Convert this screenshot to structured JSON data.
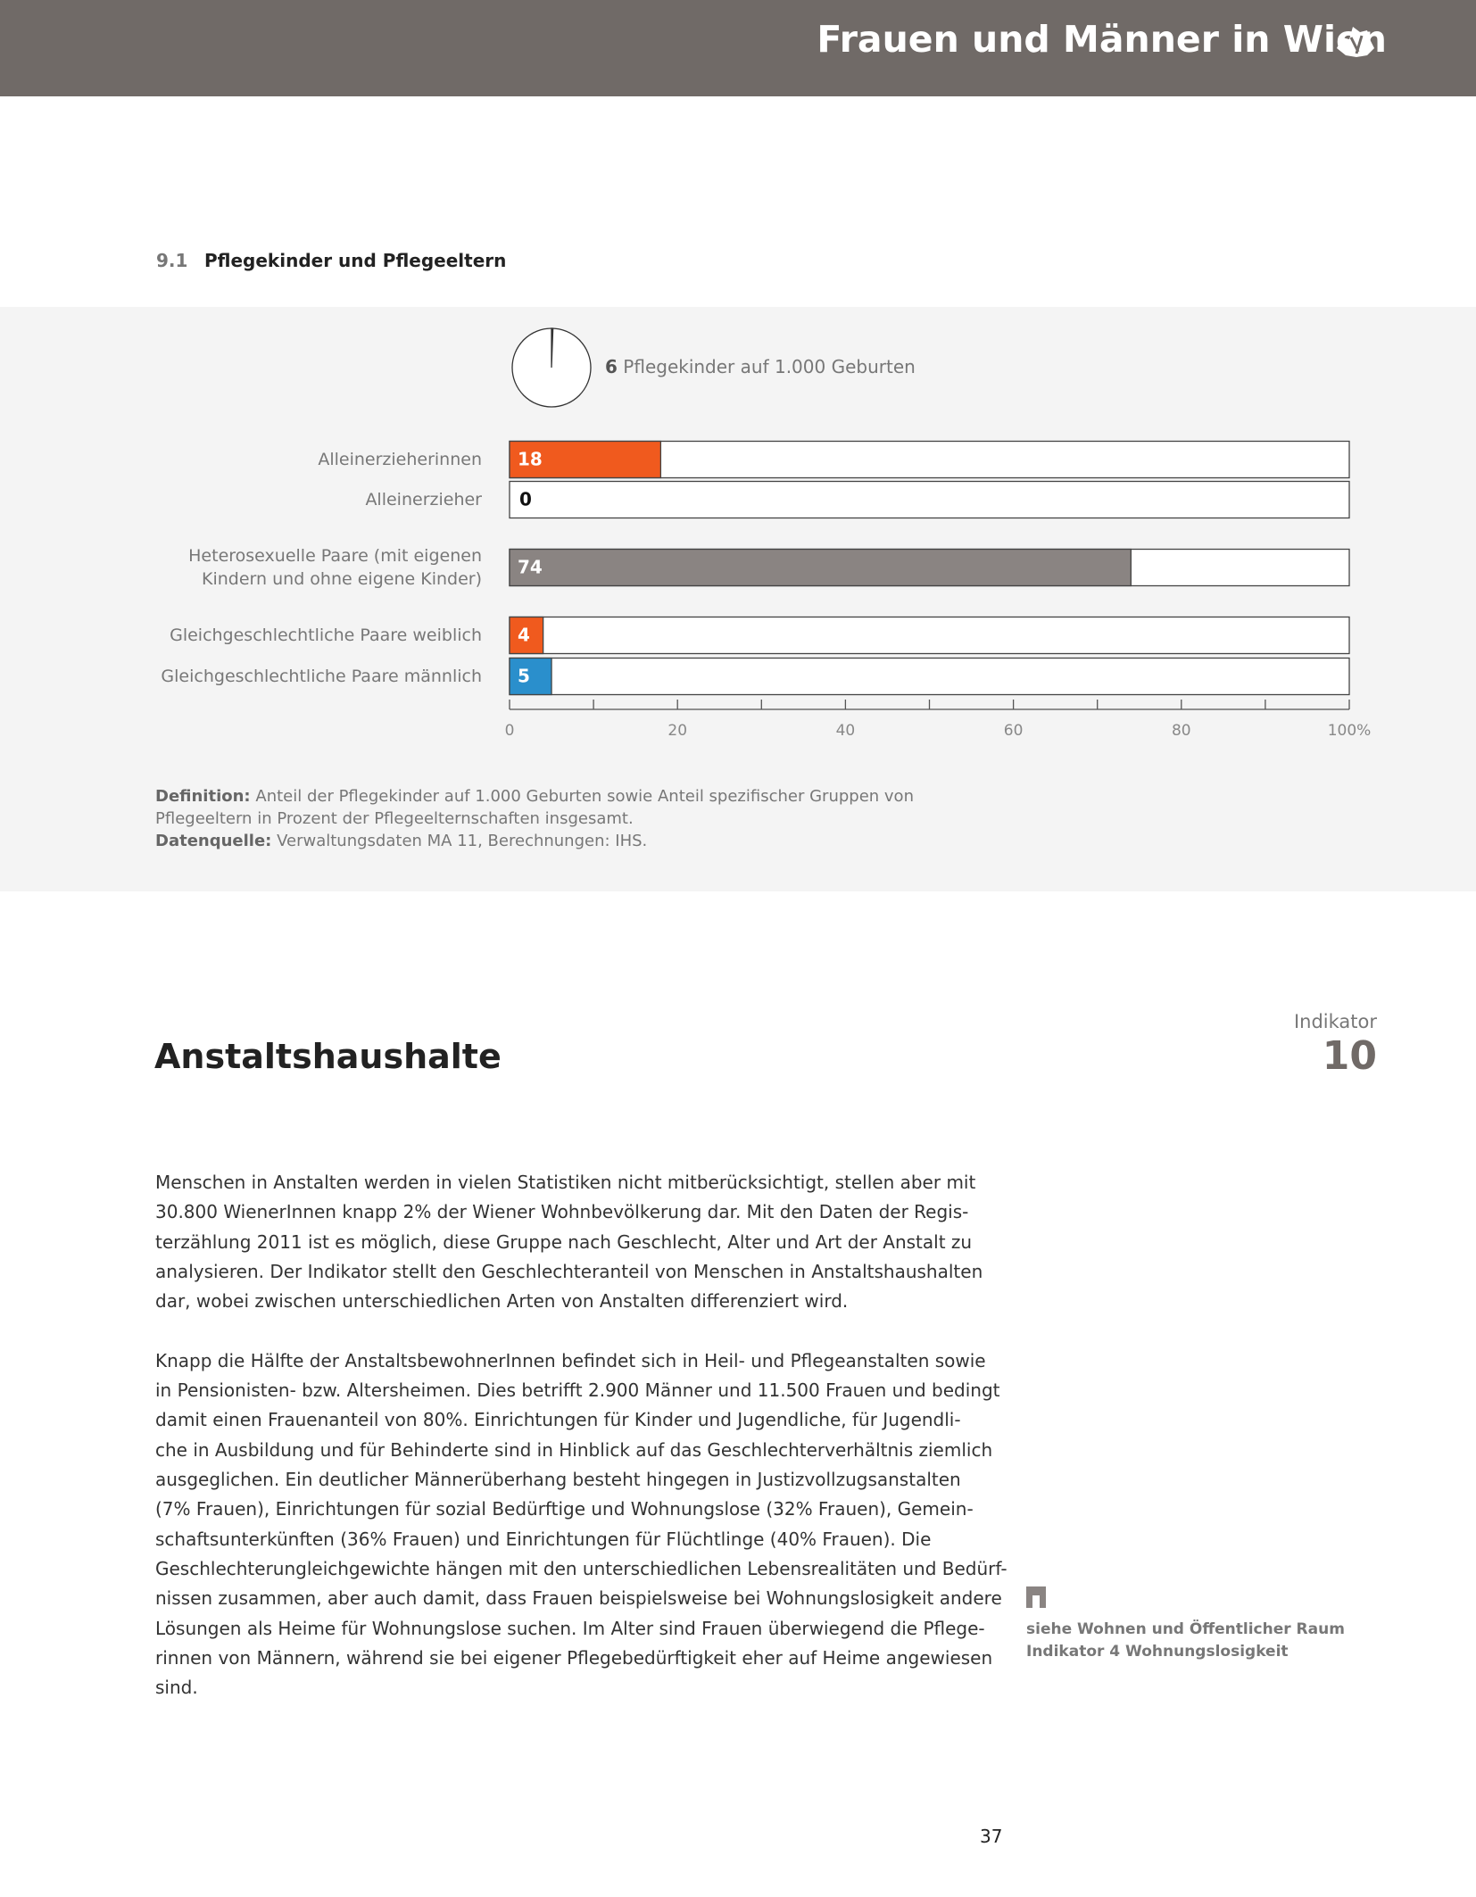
{
  "header": {
    "title": "Frauen und Männer in Wien"
  },
  "section": {
    "number": "9.1",
    "title": "Pflegekinder und Pflegeeltern"
  },
  "chart_data": [
    {
      "type": "pie",
      "value": 6,
      "total": 1000,
      "label": "Pflegekinder auf 1.000 Geburten",
      "color": "#ffffff"
    },
    {
      "type": "bar",
      "orientation": "horizontal",
      "categories": [
        "Alleinerzieherinnen",
        "Alleinerzieher",
        "Heterosexuelle Paare (mit eigenen\nKindern und ohne eigene Kinder)",
        "Gleichgeschlechtliche Paare weiblich",
        "Gleichgeschlechtliche Paare männlich"
      ],
      "values": [
        18,
        0,
        74,
        4,
        5
      ],
      "colors": [
        "#f05a1e",
        "#f05a1e",
        "#8a8482",
        "#f05a1e",
        "#2a8fcc"
      ],
      "xlim": [
        0,
        100
      ],
      "xticks": [
        0,
        20,
        40,
        60,
        80,
        {
          "value": 100,
          "label": "100%"
        }
      ],
      "minor_xticks": [
        10,
        30,
        50,
        70,
        90
      ]
    }
  ],
  "notes": {
    "definition_label": "Definition:",
    "definition": "Anteil der Pflegekinder auf 1.000 Geburten sowie Anteil spezifischer Gruppen von Pflegeeltern in Prozent der Pflegeelternschaften insgesamt.",
    "source_label": "Datenquelle:",
    "source": "Verwaltungsdaten MA 11, Berechnungen: IHS."
  },
  "indicator": {
    "label": "Indikator",
    "number": "10",
    "title": "Anstaltshaushalte"
  },
  "body": {
    "paragraphs": [
      [
        "Menschen in Anstalten werden in vielen Statistiken nicht mitberücksichtigt, stellen aber mit",
        "30.800 WienerInnen knapp 2% der Wiener Wohnbevölkerung dar. Mit den Daten der Regis-",
        "terzählung 2011 ist es möglich, diese Gruppe nach Geschlecht, Alter und Art der Anstalt zu",
        "analysieren. Der Indikator stellt den Geschlechteranteil von Menschen in Anstaltshaushalten",
        "dar, wobei zwischen unterschiedlichen Arten von Anstalten differenziert wird."
      ],
      [
        "Knapp die Hälfte der AnstaltsbewohnerInnen befindet sich in Heil- und Pflegeanstalten sowie",
        "in Pensionisten- bzw. Altersheimen. Dies betrifft 2.900 Männer und 11.500 Frauen und bedingt",
        "damit einen Frauenanteil von 80%. Einrichtungen für Kinder und Jugendliche, für Jugendli-",
        "che in Ausbildung und für Behinderte sind in Hinblick auf das Geschlechterverhältnis ziemlich",
        "ausgeglichen. Ein deutlicher Männerüberhang besteht hingegen in Justizvollzugsanstalten",
        "(7% Frauen), Einrichtungen für sozial Bedürftige und Wohnungslose (32% Frauen), Gemein-",
        "schaftsunterkünften (36% Frauen) und Einrichtungen für Flüchtlinge (40% Frauen). Die",
        "Geschlechterungleichgewichte hängen mit den unterschiedlichen Lebensrealitäten und Bedürf-",
        "nissen zusammen, aber auch damit, dass Frauen beispielsweise bei Wohnungslosigkeit andere",
        "Lösungen als Heime für Wohnungslose suchen. Im Alter sind Frauen überwiegend die Pflege-",
        "rinnen von Männern, während sie bei eigener Pflegebedürftigkeit eher auf Heime angewiesen",
        "sind."
      ]
    ]
  },
  "sidebar": {
    "lines": [
      "siehe Wohnen und Öffentlicher Raum",
      "Indikator 4 Wohnungslosigkeit"
    ]
  },
  "page_number": "37"
}
